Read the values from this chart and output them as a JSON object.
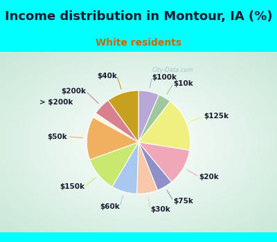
{
  "title": "Income distribution in Montour, IA (%)",
  "subtitle": "White residents",
  "bg_color": "#00ffff",
  "chart_bg_color": "#c8e8d8",
  "labels": [
    "$100k",
    "$10k",
    "$125k",
    "$20k",
    "$75k",
    "$30k",
    "$60k",
    "$150k",
    "$50k",
    "> $200k",
    "$200k",
    "$40k"
  ],
  "values": [
    6.5,
    4.0,
    17.0,
    11.5,
    5.0,
    6.5,
    8.0,
    11.0,
    13.5,
    1.5,
    5.5,
    10.0
  ],
  "colors": [
    "#b8a8d8",
    "#a0c8a0",
    "#f0f080",
    "#f0a8b8",
    "#9090c8",
    "#f8c8a8",
    "#a8c8f0",
    "#c8e870",
    "#f0b060",
    "#f5f5e0",
    "#d88090",
    "#c8a020"
  ],
  "watermark": "City-Data.com",
  "title_fontsize": 13,
  "subtitle_fontsize": 10,
  "label_fontsize": 7.5
}
